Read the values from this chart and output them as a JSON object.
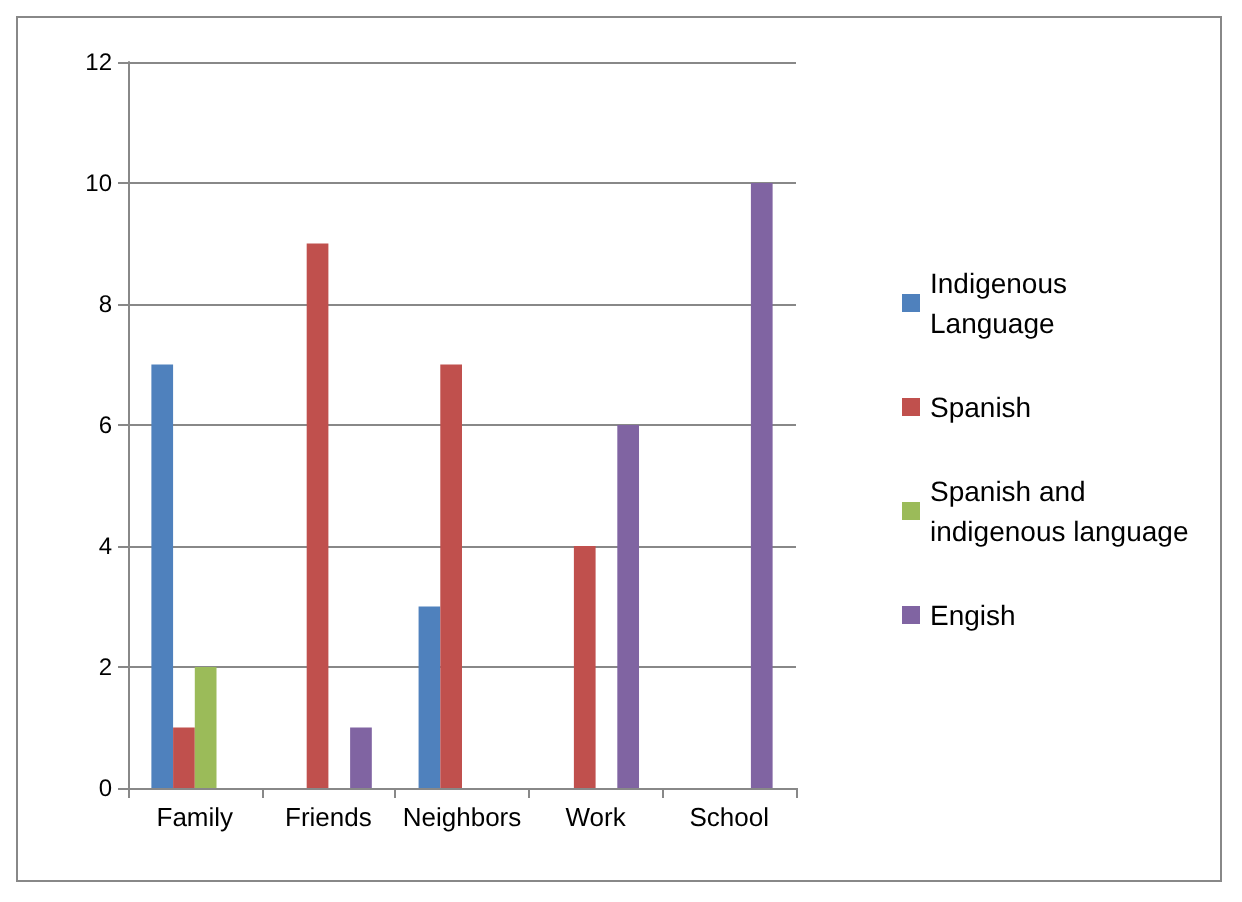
{
  "chart_data": {
    "type": "bar",
    "categories": [
      "Family",
      "Friends",
      "Neighbors",
      "Work",
      "School"
    ],
    "series": [
      {
        "name": "Indigenous Language",
        "color": "#4f81bd",
        "values": [
          7,
          null,
          3,
          null,
          null
        ]
      },
      {
        "name": "Spanish",
        "color": "#c0504d",
        "values": [
          1,
          9,
          7,
          4,
          null
        ]
      },
      {
        "name": "Spanish and indigenous language",
        "color": "#9bbb59",
        "values": [
          2,
          null,
          null,
          null,
          null
        ]
      },
      {
        "name": "Engish",
        "color": "#8064a2",
        "values": [
          null,
          1,
          null,
          6,
          10
        ]
      }
    ],
    "ylim": [
      0,
      12
    ],
    "yticks": [
      0,
      2,
      4,
      6,
      8,
      10,
      12
    ],
    "grid": "y",
    "legend": "right"
  }
}
